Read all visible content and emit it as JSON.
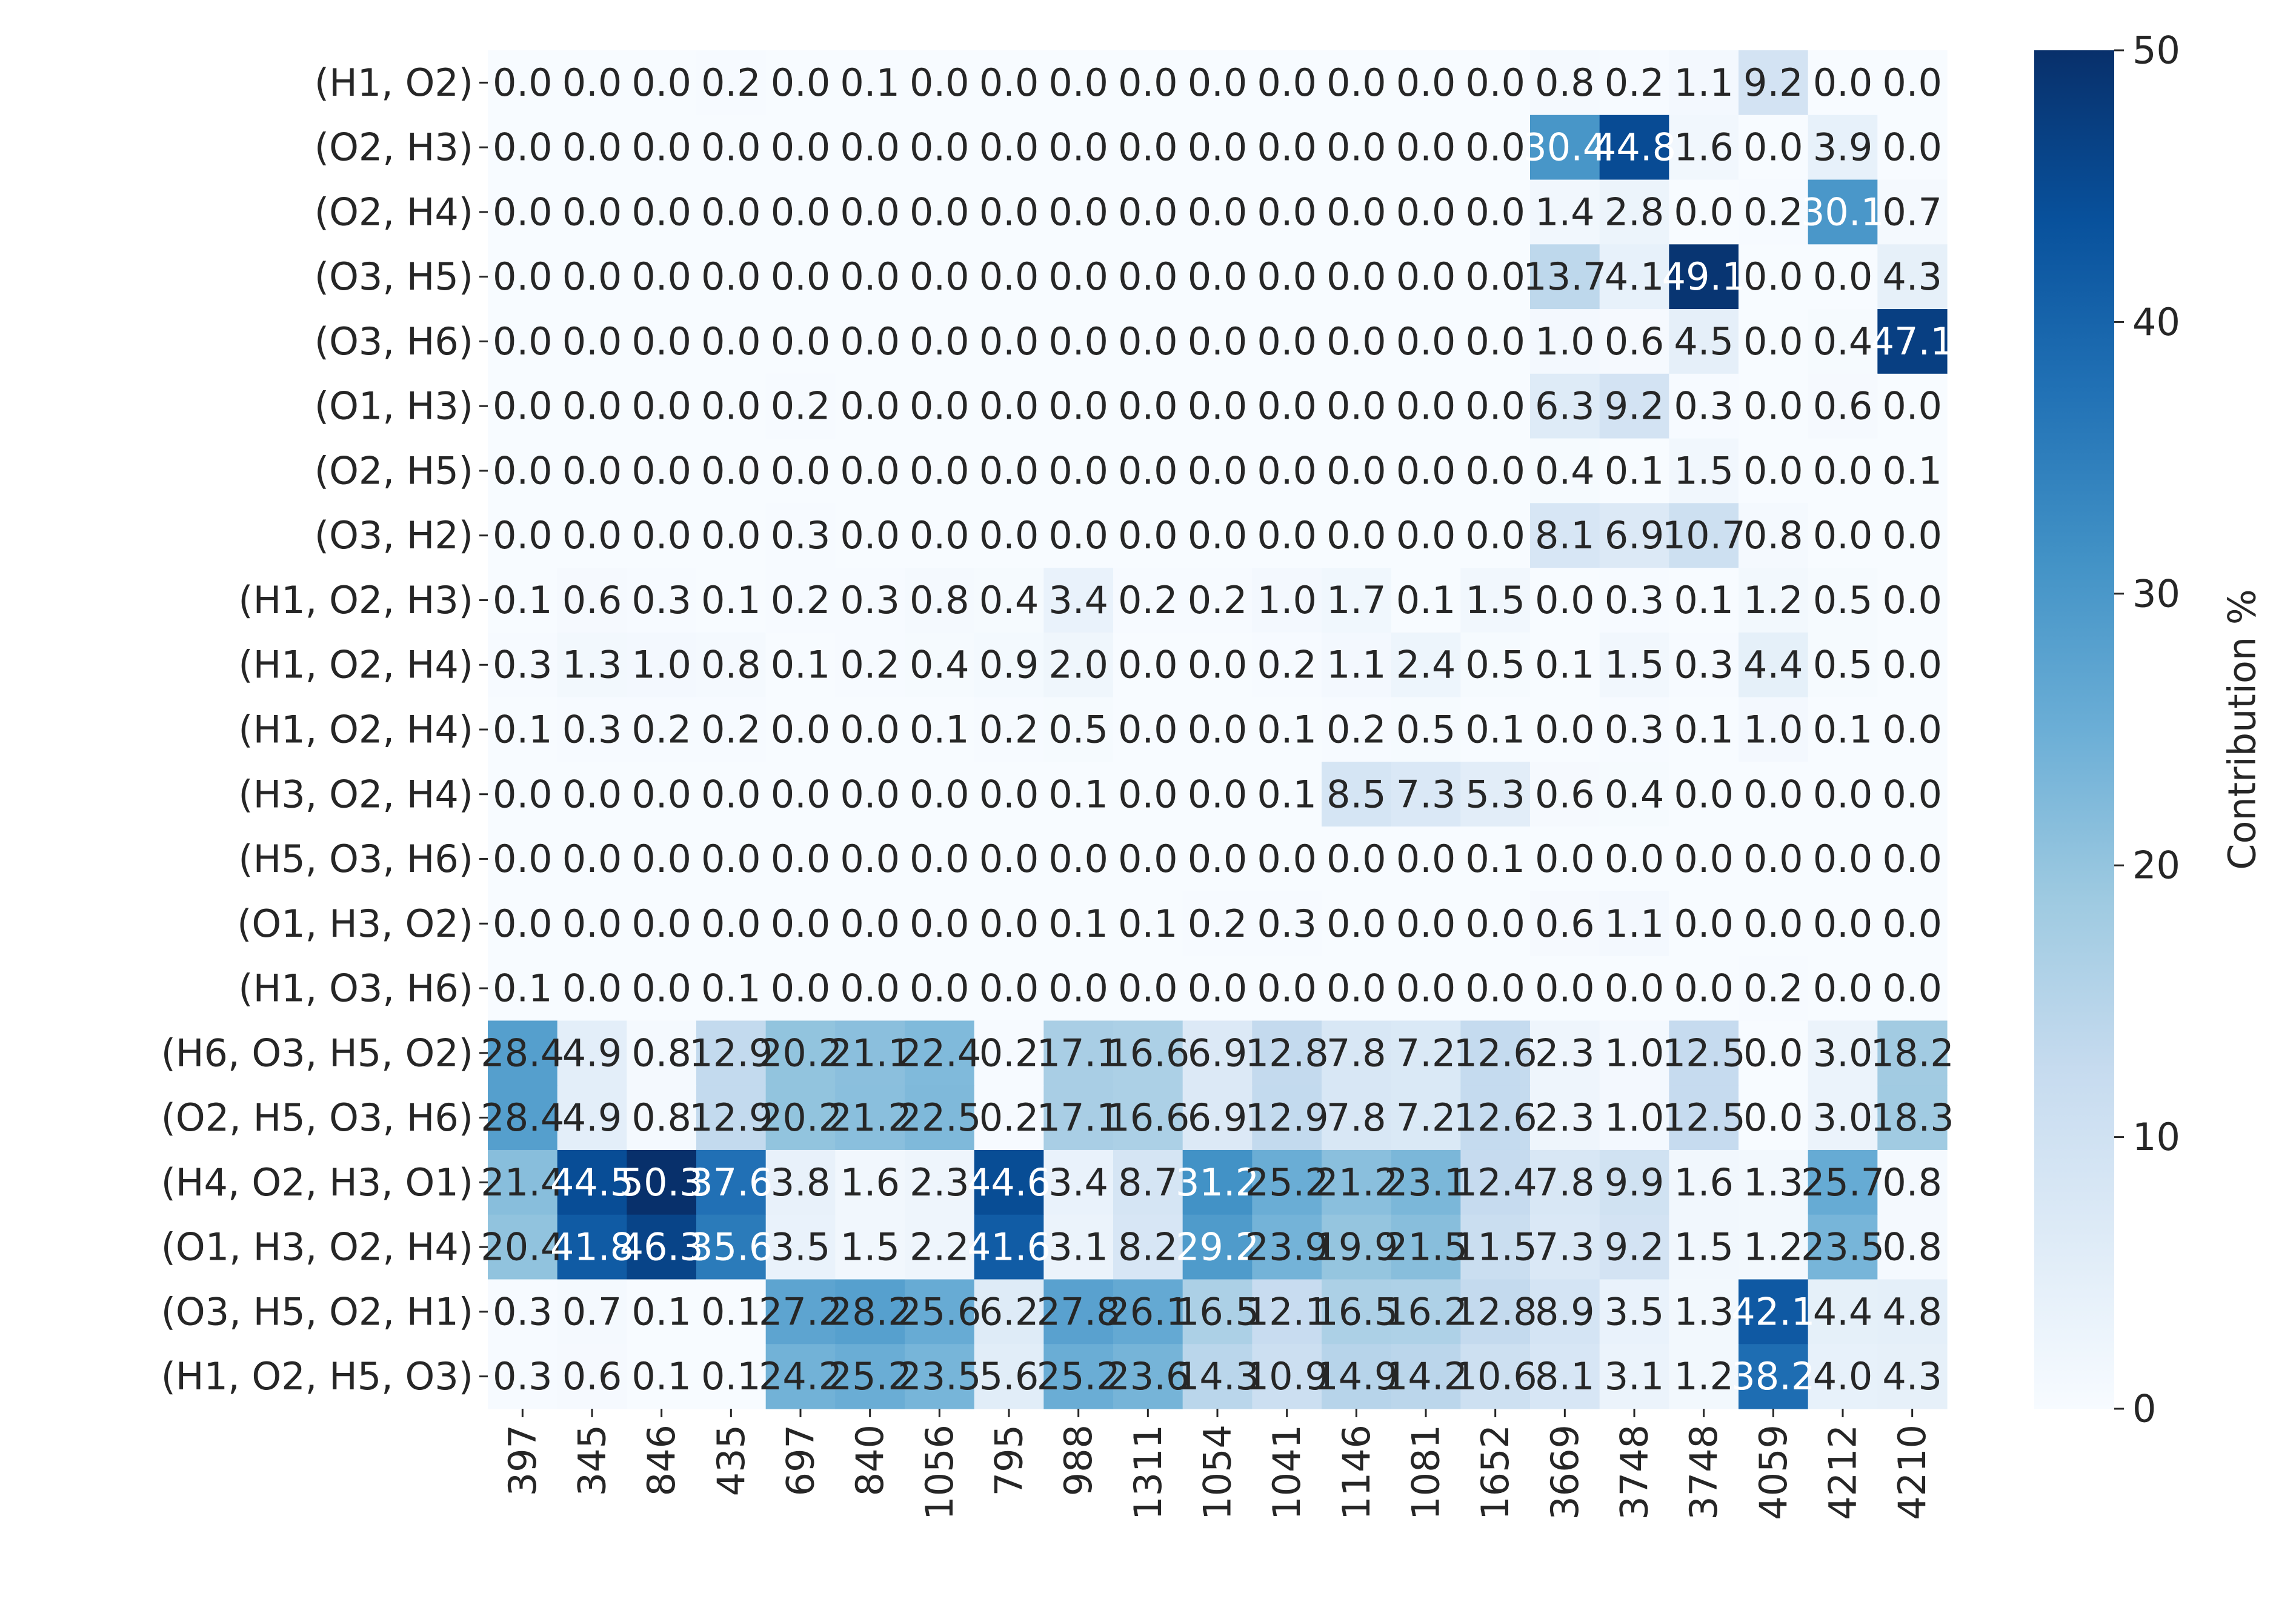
{
  "chart_data": {
    "type": "heatmap",
    "title": "",
    "xlabel": "",
    "ylabel": "",
    "x_labels": [
      "397",
      "345",
      "846",
      "435",
      "697",
      "840",
      "1056",
      "795",
      "988",
      "1311",
      "1054",
      "1041",
      "1146",
      "1081",
      "1652",
      "3669",
      "3748",
      "3748",
      "4059",
      "4212",
      "4210"
    ],
    "y_labels": [
      "(H1, O2)",
      "(O2, H3)",
      "(O2, H4)",
      "(O3, H5)",
      "(O3, H6)",
      "(O1, H3)",
      "(O2, H5)",
      "(O3, H2)",
      "(H1, O2, H3)",
      "(H1, O2, H4)",
      "(H1, O2, H4)",
      "(H3, O2, H4)",
      "(H5, O3, H6)",
      "(O1, H3, O2)",
      "(H1, O3, H6)",
      "(H6, O3, H5, O2)",
      "(O2, H5, O3, H6)",
      "(H4, O2, H3, O1)",
      "(O1, H3, O2, H4)",
      "(O3, H5, O2, H1)",
      "(H1, O2, H5, O3)"
    ],
    "values": [
      [
        0.0,
        0.0,
        0.0,
        0.2,
        0.0,
        0.1,
        0.0,
        0.0,
        0.0,
        0.0,
        0.0,
        0.0,
        0.0,
        0.0,
        0.0,
        0.8,
        0.2,
        1.1,
        9.2,
        0.0,
        0.0
      ],
      [
        0.0,
        0.0,
        0.0,
        0.0,
        0.0,
        0.0,
        0.0,
        0.0,
        0.0,
        0.0,
        0.0,
        0.0,
        0.0,
        0.0,
        0.0,
        30.4,
        44.8,
        1.6,
        0.0,
        3.9,
        0.0
      ],
      [
        0.0,
        0.0,
        0.0,
        0.0,
        0.0,
        0.0,
        0.0,
        0.0,
        0.0,
        0.0,
        0.0,
        0.0,
        0.0,
        0.0,
        0.0,
        1.4,
        2.8,
        0.0,
        0.2,
        30.1,
        0.7
      ],
      [
        0.0,
        0.0,
        0.0,
        0.0,
        0.0,
        0.0,
        0.0,
        0.0,
        0.0,
        0.0,
        0.0,
        0.0,
        0.0,
        0.0,
        0.0,
        13.7,
        4.1,
        49.1,
        0.0,
        0.0,
        4.3
      ],
      [
        0.0,
        0.0,
        0.0,
        0.0,
        0.0,
        0.0,
        0.0,
        0.0,
        0.0,
        0.0,
        0.0,
        0.0,
        0.0,
        0.0,
        0.0,
        1.0,
        0.6,
        4.5,
        0.0,
        0.4,
        47.1
      ],
      [
        0.0,
        0.0,
        0.0,
        0.0,
        0.2,
        0.0,
        0.0,
        0.0,
        0.0,
        0.0,
        0.0,
        0.0,
        0.0,
        0.0,
        0.0,
        6.3,
        9.2,
        0.3,
        0.0,
        0.6,
        0.0
      ],
      [
        0.0,
        0.0,
        0.0,
        0.0,
        0.0,
        0.0,
        0.0,
        0.0,
        0.0,
        0.0,
        0.0,
        0.0,
        0.0,
        0.0,
        0.0,
        0.4,
        0.1,
        1.5,
        0.0,
        0.0,
        0.1
      ],
      [
        0.0,
        0.0,
        0.0,
        0.0,
        0.3,
        0.0,
        0.0,
        0.0,
        0.0,
        0.0,
        0.0,
        0.0,
        0.0,
        0.0,
        0.0,
        8.1,
        6.9,
        10.7,
        0.8,
        0.0,
        0.0
      ],
      [
        0.1,
        0.6,
        0.3,
        0.1,
        0.2,
        0.3,
        0.8,
        0.4,
        3.4,
        0.2,
        0.2,
        1.0,
        1.7,
        0.1,
        1.5,
        0.0,
        0.3,
        0.1,
        1.2,
        0.5,
        0.0
      ],
      [
        0.3,
        1.3,
        1.0,
        0.8,
        0.1,
        0.2,
        0.4,
        0.9,
        2.0,
        0.0,
        0.0,
        0.2,
        1.1,
        2.4,
        0.5,
        0.1,
        1.5,
        0.3,
        4.4,
        0.5,
        0.0
      ],
      [
        0.1,
        0.3,
        0.2,
        0.2,
        0.0,
        0.0,
        0.1,
        0.2,
        0.5,
        0.0,
        0.0,
        0.1,
        0.2,
        0.5,
        0.1,
        0.0,
        0.3,
        0.1,
        1.0,
        0.1,
        0.0
      ],
      [
        0.0,
        0.0,
        0.0,
        0.0,
        0.0,
        0.0,
        0.0,
        0.0,
        0.1,
        0.0,
        0.0,
        0.1,
        8.5,
        7.3,
        5.3,
        0.6,
        0.4,
        0.0,
        0.0,
        0.0,
        0.0
      ],
      [
        0.0,
        0.0,
        0.0,
        0.0,
        0.0,
        0.0,
        0.0,
        0.0,
        0.0,
        0.0,
        0.0,
        0.0,
        0.0,
        0.0,
        0.1,
        0.0,
        0.0,
        0.0,
        0.0,
        0.0,
        0.0
      ],
      [
        0.0,
        0.0,
        0.0,
        0.0,
        0.0,
        0.0,
        0.0,
        0.0,
        0.1,
        0.1,
        0.2,
        0.3,
        0.0,
        0.0,
        0.0,
        0.6,
        1.1,
        0.0,
        0.0,
        0.0,
        0.0
      ],
      [
        0.1,
        0.0,
        0.0,
        0.1,
        0.0,
        0.0,
        0.0,
        0.0,
        0.0,
        0.0,
        0.0,
        0.0,
        0.0,
        0.0,
        0.0,
        0.0,
        0.0,
        0.0,
        0.2,
        0.0,
        0.0
      ],
      [
        28.4,
        4.9,
        0.8,
        12.9,
        20.2,
        21.1,
        22.4,
        0.2,
        17.1,
        16.6,
        6.9,
        12.8,
        7.8,
        7.2,
        12.6,
        2.3,
        1.0,
        12.5,
        0.0,
        3.0,
        18.2
      ],
      [
        28.4,
        4.9,
        0.8,
        12.9,
        20.2,
        21.2,
        22.5,
        0.2,
        17.1,
        16.6,
        6.9,
        12.9,
        7.8,
        7.2,
        12.6,
        2.3,
        1.0,
        12.5,
        0.0,
        3.0,
        18.3
      ],
      [
        21.4,
        44.5,
        50.3,
        37.6,
        3.8,
        1.6,
        2.3,
        44.6,
        3.4,
        8.7,
        31.2,
        25.2,
        21.2,
        23.1,
        12.4,
        7.8,
        9.9,
        1.6,
        1.3,
        25.7,
        0.8
      ],
      [
        20.4,
        41.8,
        46.3,
        35.6,
        3.5,
        1.5,
        2.2,
        41.6,
        3.1,
        8.2,
        29.2,
        23.9,
        19.9,
        21.5,
        11.5,
        7.3,
        9.2,
        1.5,
        1.2,
        23.5,
        0.8
      ],
      [
        0.3,
        0.7,
        0.1,
        0.1,
        27.2,
        28.2,
        25.6,
        6.2,
        27.8,
        26.1,
        16.5,
        12.1,
        16.5,
        16.2,
        12.8,
        8.9,
        3.5,
        1.3,
        42.1,
        4.4,
        4.8
      ],
      [
        0.3,
        0.6,
        0.1,
        0.1,
        24.2,
        25.2,
        23.5,
        5.6,
        25.2,
        23.6,
        14.3,
        10.9,
        14.9,
        14.2,
        10.6,
        8.1,
        3.1,
        1.2,
        38.2,
        4.0,
        4.3
      ]
    ],
    "vmin": 0,
    "vmax": 50,
    "colormap": "Blues",
    "colorbar": {
      "label": "Contribution %",
      "ticks": [
        "0",
        "10",
        "20",
        "30",
        "40",
        "50"
      ]
    },
    "annotations": true,
    "grid": false,
    "legend": "none"
  }
}
